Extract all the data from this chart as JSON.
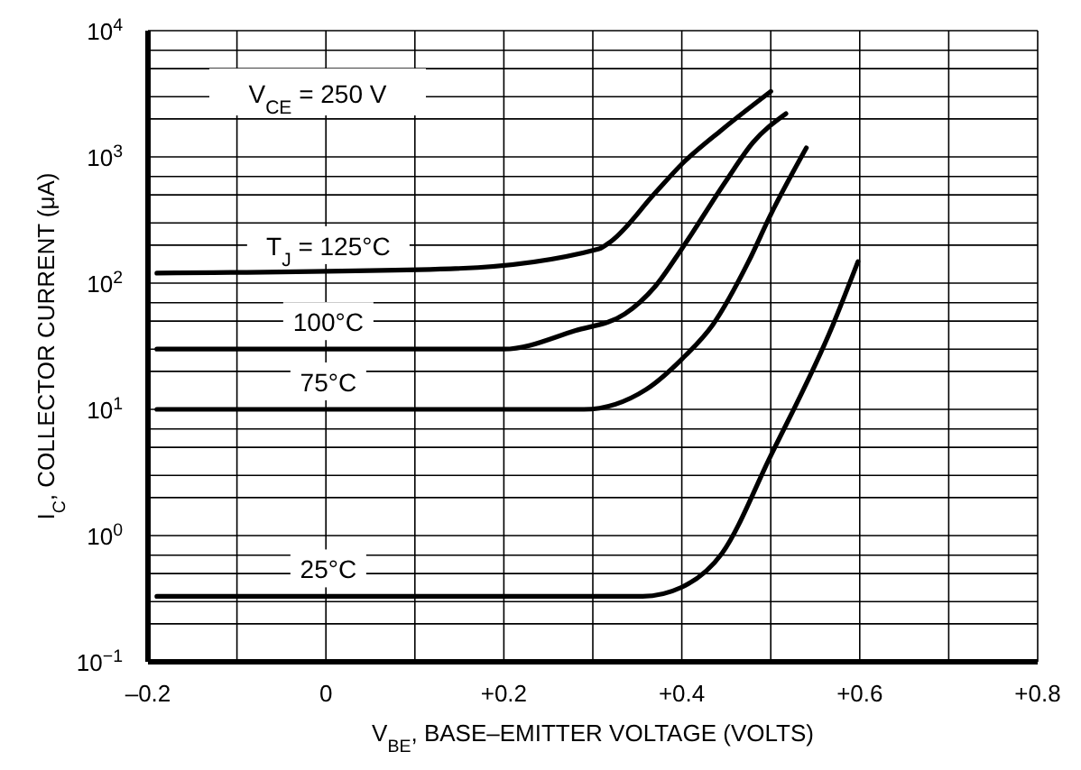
{
  "chart_data": {
    "type": "line",
    "xlabel": "V$_{BE}$, BASE–EMITTER VOLTAGE (VOLTS)",
    "ylabel": "I$_{C}$, COLLECTOR CURRENT (μA)",
    "annotations": [
      "V$_{CE}$ = 250 V"
    ],
    "series": [
      {
        "name": "T$_{J}$ = 125°C",
        "color": "#000000",
        "x": [
          -0.19,
          0.14,
          0.307,
          0.32,
          0.37,
          0.4,
          0.445,
          0.5
        ],
        "values": [
          120,
          130,
          187,
          213,
          518,
          877,
          1640,
          3300
        ]
      },
      {
        "name": "100°C",
        "color": "#000000",
        "x": [
          -0.19,
          0.2,
          0.28,
          0.336,
          0.37,
          0.4,
          0.45,
          0.48,
          0.517
        ],
        "values": [
          30,
          30,
          42,
          57,
          94,
          187,
          650,
          1300,
          2200
        ]
      },
      {
        "name": "75°C",
        "color": "#000000",
        "x": [
          -0.19,
          0.29,
          0.36,
          0.4,
          0.435,
          0.475,
          0.5,
          0.54
        ],
        "values": [
          10,
          10,
          14.4,
          25,
          47,
          148,
          350,
          1180
        ]
      },
      {
        "name": "25°C",
        "color": "#000000",
        "x": [
          -0.19,
          0.356,
          0.4,
          0.445,
          0.5,
          0.57,
          0.598
        ],
        "values": [
          0.33,
          0.33,
          0.39,
          0.72,
          4.3,
          47,
          148
        ]
      }
    ],
    "log": "y",
    "grid": true,
    "legend": false,
    "marker": "none",
    "line_style": "solid",
    "xlim": [
      -0.2,
      0.8
    ],
    "xticks": [
      {
        "value": -0.2,
        "label": "–0.2"
      },
      {
        "value": -0.1,
        "label": null
      },
      0,
      {
        "value": 0.1,
        "label": null
      },
      {
        "value": 0.2,
        "label": "+0.2"
      },
      {
        "value": 0.3,
        "label": null
      },
      {
        "value": 0.4,
        "label": "+0.4"
      },
      {
        "value": 0.5,
        "label": null
      },
      {
        "value": 0.6,
        "label": "+0.6"
      },
      {
        "value": 0.7,
        "label": null
      },
      {
        "value": 0.8,
        "label": "+0.8"
      }
    ],
    "ylim": [
      0.1,
      10000
    ],
    "yticks": [
      {
        "value": 0.1,
        "label": "10$^{−1}$"
      },
      {
        "value": 0.2,
        "label": null
      },
      {
        "value": 0.3,
        "label": null
      },
      {
        "value": 0.5,
        "label": null
      },
      {
        "value": 0.7,
        "label": null
      },
      {
        "value": 1,
        "label": "10$^{0}$"
      },
      {
        "value": 2,
        "label": null
      },
      {
        "value": 3,
        "label": null
      },
      {
        "value": 5,
        "label": null
      },
      {
        "value": 7,
        "label": null
      },
      {
        "value": 10,
        "label": "10$^{1}$"
      },
      {
        "value": 20,
        "label": null
      },
      {
        "value": 30,
        "label": null
      },
      {
        "value": 50,
        "label": null
      },
      {
        "value": 70,
        "label": null
      },
      {
        "value": 100,
        "label": "10$^{2}$"
      },
      {
        "value": 200,
        "label": null
      },
      {
        "value": 300,
        "label": null
      },
      {
        "value": 500,
        "label": null
      },
      {
        "value": 700,
        "label": null
      },
      {
        "value": 1000,
        "label": "10$^{3}$"
      },
      {
        "value": 2000,
        "label": null
      },
      {
        "value": 3000,
        "label": null
      },
      {
        "value": 5000,
        "label": null
      },
      {
        "value": 7000,
        "label": null
      },
      {
        "value": 10000,
        "label": "10$^{4}$"
      }
    ]
  }
}
